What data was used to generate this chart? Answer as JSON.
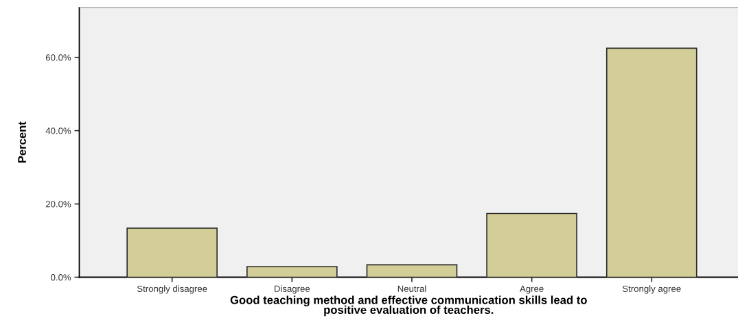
{
  "chart_data": {
    "type": "bar",
    "xlabel": "Good teaching method and effective communication skills lead to\npositive evaluation of teachers.",
    "ylabel": "Percent",
    "categories": [
      "Strongly disagree",
      "Disagree",
      "Neutral",
      "Agree",
      "Strongly agree"
    ],
    "values": [
      13.4,
      2.9,
      3.4,
      17.4,
      62.5
    ],
    "color": "#d3ce97",
    "ylim": [
      0,
      73.6
    ],
    "yticks": [
      {
        "value": 0,
        "label": "0.0%"
      },
      {
        "value": 20,
        "label": "20.0%"
      },
      {
        "value": 40,
        "label": "40.0%"
      },
      {
        "value": 60,
        "label": "60.0%"
      }
    ],
    "grid": false
  }
}
